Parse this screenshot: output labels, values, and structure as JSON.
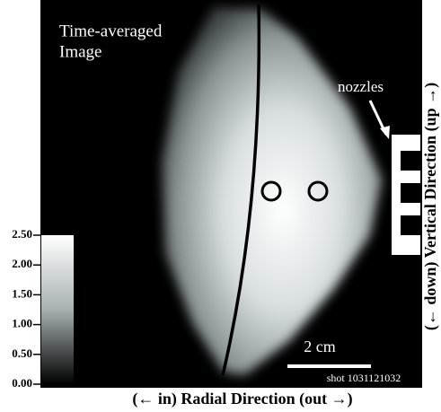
{
  "title": [
    "Time-averaged",
    "Image"
  ],
  "nozzles_label": "nozzles",
  "scale_bar_label": "2 cm",
  "shot_label": "shot 1031121032",
  "x_axis_label": "(← in) Radial Direction (out →)",
  "y_axis_label": "(← down) Vertical Direction (up →)",
  "colorbar": {
    "lim": [
      0,
      2.5
    ],
    "ticks": [
      {
        "value": 2.5,
        "label": "2.50"
      },
      {
        "value": 2,
        "label": "2.00"
      },
      {
        "value": 1.5,
        "label": "1.50"
      },
      {
        "value": 1,
        "label": "1.00"
      },
      {
        "value": 0.5,
        "label": "0.50"
      },
      {
        "value": 0,
        "label": "0.00"
      }
    ]
  }
}
